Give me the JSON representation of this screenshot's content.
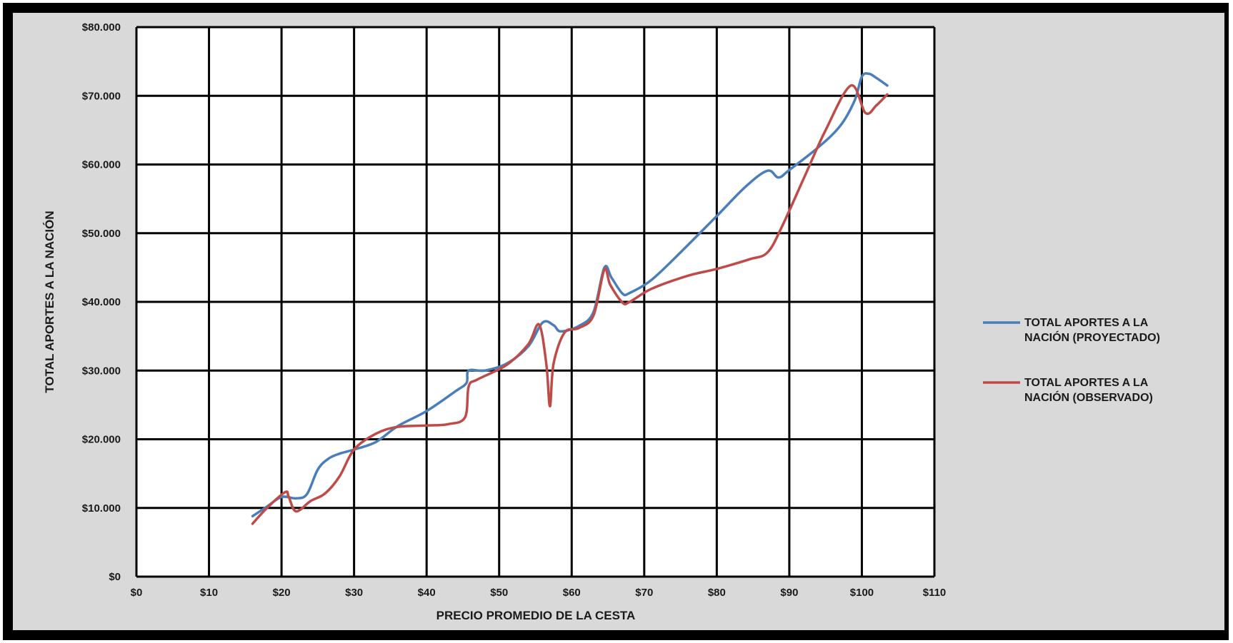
{
  "chart_data": {
    "type": "line",
    "title": "",
    "xlabel": "PRECIO PROMEDIO DE LA CESTA",
    "ylabel": "TOTAL APORTES A LA NACIÓN",
    "xlim": [
      0,
      110
    ],
    "ylim": [
      0,
      80000
    ],
    "x_ticks": [
      0,
      10,
      20,
      30,
      40,
      50,
      60,
      70,
      80,
      90,
      100,
      110
    ],
    "x_tick_labels": [
      "$0",
      "$10",
      "$20",
      "$30",
      "$40",
      "$50",
      "$60",
      "$70",
      "$80",
      "$90",
      "$100",
      "$110"
    ],
    "y_ticks": [
      0,
      10000,
      20000,
      30000,
      40000,
      50000,
      60000,
      70000,
      80000
    ],
    "y_tick_labels": [
      "$0",
      "$10.000",
      "$20.000",
      "$30.000",
      "$40.000",
      "$50.000",
      "$60.000",
      "$70.000",
      "$80.000"
    ],
    "grid": true,
    "legend_position": "right",
    "series": [
      {
        "name": "TOTAL APORTES A LA NACIÓN (PROYECTADO)",
        "color": "#4a7ebb",
        "points": [
          [
            16,
            8800
          ],
          [
            18,
            10200
          ],
          [
            20,
            11600
          ],
          [
            22,
            11400
          ],
          [
            23.5,
            12000
          ],
          [
            25,
            15600
          ],
          [
            26.5,
            17200
          ],
          [
            28,
            17900
          ],
          [
            30,
            18500
          ],
          [
            33,
            19600
          ],
          [
            36,
            21900
          ],
          [
            40,
            24100
          ],
          [
            44,
            27000
          ],
          [
            45.5,
            28200
          ],
          [
            45.8,
            30000
          ],
          [
            48,
            30000
          ],
          [
            51,
            31000
          ],
          [
            54,
            33500
          ],
          [
            56,
            37000
          ],
          [
            57.5,
            36600
          ],
          [
            58.5,
            35700
          ],
          [
            61,
            36500
          ],
          [
            63,
            38500
          ],
          [
            64.5,
            45000
          ],
          [
            65.5,
            43500
          ],
          [
            67,
            41200
          ],
          [
            68,
            41300
          ],
          [
            71,
            43200
          ],
          [
            75,
            47200
          ],
          [
            80,
            52500
          ],
          [
            84,
            56800
          ],
          [
            87,
            59100
          ],
          [
            88.5,
            58100
          ],
          [
            90,
            59200
          ],
          [
            94,
            62500
          ],
          [
            97,
            65600
          ],
          [
            99,
            69300
          ],
          [
            100,
            72800
          ],
          [
            101,
            73200
          ],
          [
            102,
            72600
          ],
          [
            103.5,
            71500
          ]
        ]
      },
      {
        "name": "TOTAL APORTES A LA NACIÓN (OBSERVADO)",
        "color": "#be4b48",
        "points": [
          [
            16,
            7700
          ],
          [
            18,
            10000
          ],
          [
            20.5,
            12300
          ],
          [
            21,
            11600
          ],
          [
            22,
            9500
          ],
          [
            24,
            11000
          ],
          [
            26,
            12100
          ],
          [
            28,
            14600
          ],
          [
            30,
            18500
          ],
          [
            33,
            20800
          ],
          [
            36,
            21800
          ],
          [
            40,
            22000
          ],
          [
            43,
            22200
          ],
          [
            45.3,
            23200
          ],
          [
            45.8,
            27700
          ],
          [
            47,
            28700
          ],
          [
            51,
            30800
          ],
          [
            54,
            33800
          ],
          [
            55.5,
            36700
          ],
          [
            56.5,
            31000
          ],
          [
            57,
            24800
          ],
          [
            57.5,
            31000
          ],
          [
            59,
            35500
          ],
          [
            61,
            36200
          ],
          [
            63,
            38000
          ],
          [
            64.5,
            44700
          ],
          [
            65.3,
            42500
          ],
          [
            67,
            39900
          ],
          [
            68,
            40000
          ],
          [
            71,
            41900
          ],
          [
            76,
            43800
          ],
          [
            80,
            44800
          ],
          [
            84.5,
            46200
          ],
          [
            87,
            47200
          ],
          [
            89,
            51000
          ],
          [
            92,
            58000
          ],
          [
            95,
            65000
          ],
          [
            98.5,
            71500
          ],
          [
            100.5,
            67500
          ],
          [
            102,
            68600
          ],
          [
            103.5,
            70200
          ]
        ]
      }
    ]
  }
}
